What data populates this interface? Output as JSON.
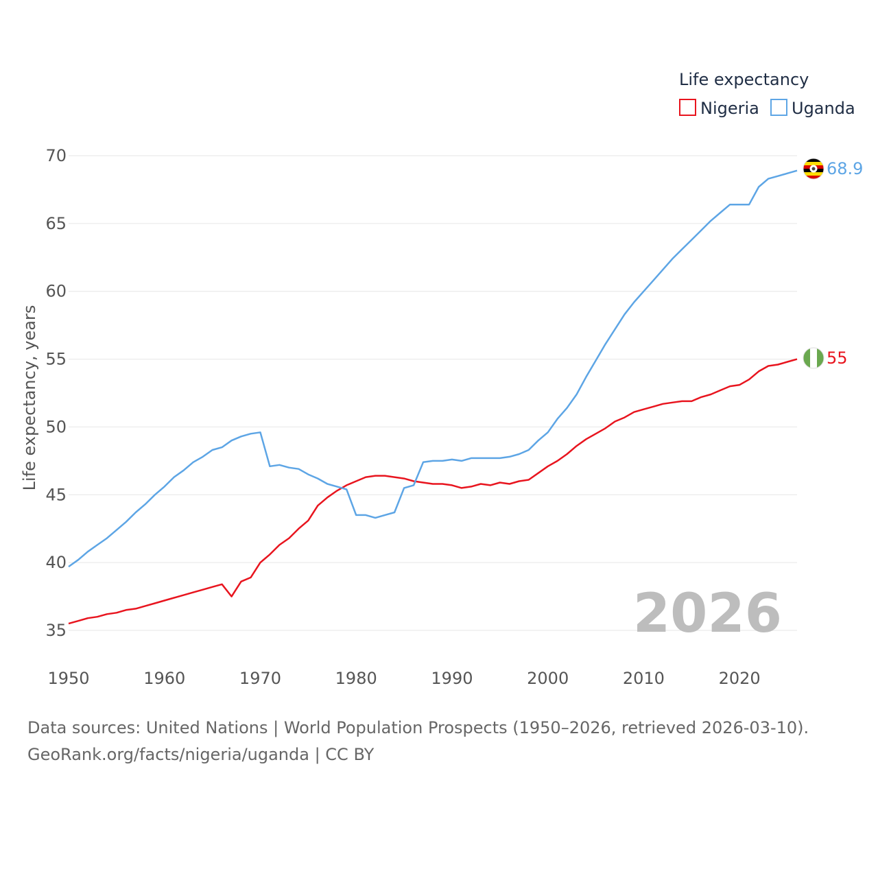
{
  "chart_data": {
    "type": "line",
    "title": "",
    "xlabel": "",
    "ylabel": "Life expectancy, years",
    "xlim": [
      1950,
      2026
    ],
    "ylim": [
      33,
      71
    ],
    "x_ticks": [
      1950,
      1960,
      1970,
      1980,
      1990,
      2000,
      2010,
      2020
    ],
    "y_ticks": [
      35,
      40,
      45,
      50,
      55,
      60,
      65,
      70
    ],
    "grid": true,
    "legend": {
      "title": "Life expectancy",
      "position": "top-right"
    },
    "year_label": "2026",
    "series": [
      {
        "name": "Nigeria",
        "color": "#e8141e",
        "end_label": "55",
        "flag": "nigeria-flag",
        "points": [
          [
            1950,
            35.5
          ],
          [
            1951,
            35.7
          ],
          [
            1952,
            35.9
          ],
          [
            1953,
            36.0
          ],
          [
            1954,
            36.2
          ],
          [
            1955,
            36.3
          ],
          [
            1956,
            36.5
          ],
          [
            1957,
            36.6
          ],
          [
            1958,
            36.8
          ],
          [
            1959,
            37.0
          ],
          [
            1960,
            37.2
          ],
          [
            1961,
            37.4
          ],
          [
            1962,
            37.6
          ],
          [
            1963,
            37.8
          ],
          [
            1964,
            38.0
          ],
          [
            1965,
            38.2
          ],
          [
            1966,
            38.4
          ],
          [
            1967,
            37.5
          ],
          [
            1968,
            38.6
          ],
          [
            1969,
            38.9
          ],
          [
            1970,
            40.0
          ],
          [
            1971,
            40.6
          ],
          [
            1972,
            41.3
          ],
          [
            1973,
            41.8
          ],
          [
            1974,
            42.5
          ],
          [
            1975,
            43.1
          ],
          [
            1976,
            44.2
          ],
          [
            1977,
            44.8
          ],
          [
            1978,
            45.3
          ],
          [
            1979,
            45.7
          ],
          [
            1980,
            46.0
          ],
          [
            1981,
            46.3
          ],
          [
            1982,
            46.4
          ],
          [
            1983,
            46.4
          ],
          [
            1984,
            46.3
          ],
          [
            1985,
            46.2
          ],
          [
            1986,
            46.0
          ],
          [
            1987,
            45.9
          ],
          [
            1988,
            45.8
          ],
          [
            1989,
            45.8
          ],
          [
            1990,
            45.7
          ],
          [
            1991,
            45.5
          ],
          [
            1992,
            45.6
          ],
          [
            1993,
            45.8
          ],
          [
            1994,
            45.7
          ],
          [
            1995,
            45.9
          ],
          [
            1996,
            45.8
          ],
          [
            1997,
            46.0
          ],
          [
            1998,
            46.1
          ],
          [
            1999,
            46.6
          ],
          [
            2000,
            47.1
          ],
          [
            2001,
            47.5
          ],
          [
            2002,
            48.0
          ],
          [
            2003,
            48.6
          ],
          [
            2004,
            49.1
          ],
          [
            2005,
            49.5
          ],
          [
            2006,
            49.9
          ],
          [
            2007,
            50.4
          ],
          [
            2008,
            50.7
          ],
          [
            2009,
            51.1
          ],
          [
            2010,
            51.3
          ],
          [
            2011,
            51.5
          ],
          [
            2012,
            51.7
          ],
          [
            2013,
            51.8
          ],
          [
            2014,
            51.9
          ],
          [
            2015,
            51.9
          ],
          [
            2016,
            52.2
          ],
          [
            2017,
            52.4
          ],
          [
            2018,
            52.7
          ],
          [
            2019,
            53.0
          ],
          [
            2020,
            53.1
          ],
          [
            2021,
            53.5
          ],
          [
            2022,
            54.1
          ],
          [
            2023,
            54.5
          ],
          [
            2024,
            54.6
          ],
          [
            2025,
            54.8
          ],
          [
            2026,
            55.0
          ]
        ]
      },
      {
        "name": "Uganda",
        "color": "#5da5e5",
        "end_label": "68.9",
        "flag": "uganda-flag",
        "points": [
          [
            1950,
            39.7
          ],
          [
            1951,
            40.2
          ],
          [
            1952,
            40.8
          ],
          [
            1953,
            41.3
          ],
          [
            1954,
            41.8
          ],
          [
            1955,
            42.4
          ],
          [
            1956,
            43.0
          ],
          [
            1957,
            43.7
          ],
          [
            1958,
            44.3
          ],
          [
            1959,
            45.0
          ],
          [
            1960,
            45.6
          ],
          [
            1961,
            46.3
          ],
          [
            1962,
            46.8
          ],
          [
            1963,
            47.4
          ],
          [
            1964,
            47.8
          ],
          [
            1965,
            48.3
          ],
          [
            1966,
            48.5
          ],
          [
            1967,
            49.0
          ],
          [
            1968,
            49.3
          ],
          [
            1969,
            49.5
          ],
          [
            1970,
            49.6
          ],
          [
            1971,
            47.1
          ],
          [
            1972,
            47.2
          ],
          [
            1973,
            47.0
          ],
          [
            1974,
            46.9
          ],
          [
            1975,
            46.5
          ],
          [
            1976,
            46.2
          ],
          [
            1977,
            45.8
          ],
          [
            1978,
            45.6
          ],
          [
            1979,
            45.4
          ],
          [
            1980,
            43.5
          ],
          [
            1981,
            43.5
          ],
          [
            1982,
            43.3
          ],
          [
            1983,
            43.5
          ],
          [
            1984,
            43.7
          ],
          [
            1985,
            45.5
          ],
          [
            1986,
            45.7
          ],
          [
            1987,
            47.4
          ],
          [
            1988,
            47.5
          ],
          [
            1989,
            47.5
          ],
          [
            1990,
            47.6
          ],
          [
            1991,
            47.5
          ],
          [
            1992,
            47.7
          ],
          [
            1993,
            47.7
          ],
          [
            1994,
            47.7
          ],
          [
            1995,
            47.7
          ],
          [
            1996,
            47.8
          ],
          [
            1997,
            48.0
          ],
          [
            1998,
            48.3
          ],
          [
            1999,
            49.0
          ],
          [
            2000,
            49.6
          ],
          [
            2001,
            50.6
          ],
          [
            2002,
            51.4
          ],
          [
            2003,
            52.4
          ],
          [
            2004,
            53.7
          ],
          [
            2005,
            54.9
          ],
          [
            2006,
            56.1
          ],
          [
            2007,
            57.2
          ],
          [
            2008,
            58.3
          ],
          [
            2009,
            59.2
          ],
          [
            2010,
            60.0
          ],
          [
            2011,
            60.8
          ],
          [
            2012,
            61.6
          ],
          [
            2013,
            62.4
          ],
          [
            2014,
            63.1
          ],
          [
            2015,
            63.8
          ],
          [
            2016,
            64.5
          ],
          [
            2017,
            65.2
          ],
          [
            2018,
            65.8
          ],
          [
            2019,
            66.4
          ],
          [
            2020,
            66.4
          ],
          [
            2021,
            66.4
          ],
          [
            2022,
            67.7
          ],
          [
            2023,
            68.3
          ],
          [
            2024,
            68.5
          ],
          [
            2025,
            68.7
          ],
          [
            2026,
            68.9
          ]
        ]
      }
    ]
  },
  "footer": {
    "line1": "Data sources: United Nations | World Population Prospects (1950–2026, retrieved 2026-03-10).",
    "line2": "GeoRank.org/facts/nigeria/uganda | CC BY"
  }
}
